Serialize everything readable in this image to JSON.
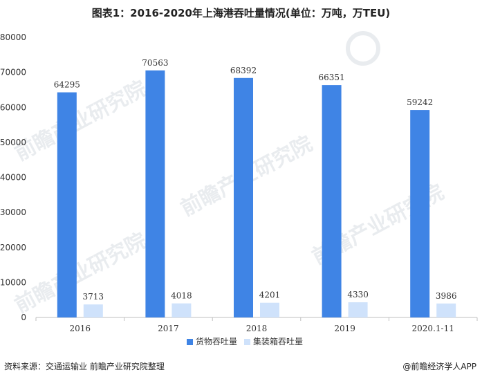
{
  "title": "图表1：2016-2020年上海港吞吐量情况(单位：万吨，万TEU)",
  "footer": {
    "source": "资料来源：交通运输业 前瞻产业研究院整理",
    "brand": "@前瞻经济学人APP"
  },
  "watermark": "前瞻产业研究院",
  "colors": {
    "series1": "#3f84e5",
    "series2": "#cfe2fb",
    "axis": "#bfbfbf",
    "text": "#333333"
  },
  "chart_data": {
    "type": "bar",
    "title": "图表1：2016-2020年上海港吞吐量情况(单位：万吨，万TEU)",
    "categories": [
      "2016",
      "2017",
      "2018",
      "2019",
      "2020.1-11"
    ],
    "series": [
      {
        "name": "货物吞吐量",
        "values": [
          64295,
          70563,
          68392,
          66351,
          59242
        ]
      },
      {
        "name": "集装箱吞吐量",
        "values": [
          3713,
          4018,
          4201,
          4330,
          3986
        ]
      }
    ],
    "ylim": [
      0,
      80000
    ],
    "yticks": [
      0,
      10000,
      20000,
      30000,
      40000,
      50000,
      60000,
      70000,
      80000
    ],
    "ytick_labels": [
      "0",
      "10000",
      "20000",
      "30000",
      "40000",
      "50000",
      "60000",
      "70000",
      "80000"
    ],
    "xlabel": "",
    "ylabel": "",
    "grid": false,
    "legend": "bottom-center",
    "data_labels": true
  }
}
